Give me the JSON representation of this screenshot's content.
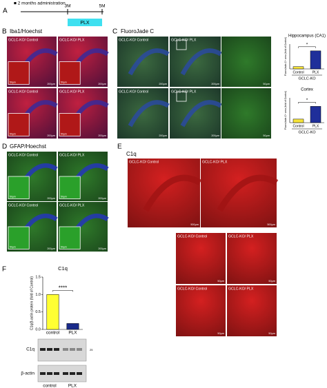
{
  "panel_A": {
    "letter": "A",
    "legend": "■ 2 months administration",
    "start": "3M",
    "end": "5M",
    "treatment": "PLX"
  },
  "panel_B": {
    "letter": "B",
    "title": "Iba1/Hoechst",
    "tiles": [
      {
        "label": "GCLC-KO/ Control",
        "inset_scale": "50μm",
        "scale": "200μm"
      },
      {
        "label": "GCLC-KO/ PLX",
        "inset_scale": "50μm",
        "scale": "200μm"
      },
      {
        "label": "GCLC-KO/ Control",
        "inset_scale": "50μm",
        "scale": "200μm"
      },
      {
        "label": "GCLC-KO/ PLX",
        "inset_scale": "50μm",
        "scale": "200μm"
      }
    ]
  },
  "panel_C": {
    "letter": "C",
    "title": "FluoroJade C",
    "tiles": [
      {
        "label": "GCLC-KO/ Control",
        "scale": "200μm"
      },
      {
        "label": "GCLC-KO/ PLX",
        "scale": "200μm"
      },
      {
        "scale": "50μm"
      },
      {
        "label": "GCLC-KO/ Control",
        "scale": "200μm"
      },
      {
        "label": "GCLC-KO/ PLX",
        "scale": "200μm"
      },
      {
        "scale": "50μm"
      }
    ]
  },
  "panel_D": {
    "letter": "D",
    "title": "GFAP/Hoechst",
    "tiles": [
      {
        "label": "GCLC-KO/ Control",
        "inset_scale": "50μm",
        "scale": "200μm"
      },
      {
        "label": "GCLC-KO/ PLX",
        "inset_scale": "50μm",
        "scale": "200μm"
      },
      {
        "label": "GCLC-KO/ Control",
        "inset_scale": "50μm",
        "scale": "200μm"
      },
      {
        "label": "GCLC-KO/ PLX",
        "inset_scale": "50μm",
        "scale": "200μm"
      }
    ]
  },
  "panel_E": {
    "letter": "E",
    "title": "C1q",
    "tiles": [
      {
        "label": "GCLC-KO/ Control",
        "scale": "500μm"
      },
      {
        "label": "GCLC-KO/ PLX",
        "scale": "500μm"
      },
      {
        "label": "GCLC-KO/ Control",
        "scale": "50μm"
      },
      {
        "label": "GCLC-KO/ PLX",
        "scale": "50μm"
      },
      {
        "label": "GCLC-KO/ Control",
        "scale": "50μm"
      },
      {
        "label": "GCLC-KO/ PLX",
        "scale": "50μm"
      }
    ]
  },
  "panel_F": {
    "letter": "F",
    "blot_bands": [
      "C1q",
      "β-actin"
    ],
    "marker": "25",
    "lanes": [
      "control",
      "PLX"
    ]
  },
  "chart_data": [
    {
      "type": "bar",
      "title": "Hippocampus (CA1)",
      "y_label": "FluoroJade-C+ area (fold of Control)",
      "x_label": "GCLC-KO",
      "categories": [
        "Control",
        "PLX"
      ],
      "values": [
        1,
        8
      ],
      "colors": [
        "#f5e33a",
        "#1f2f9a"
      ],
      "ylim": [
        0,
        11
      ],
      "annotation": "*"
    },
    {
      "type": "bar",
      "title": "Cortex",
      "y_label": "FluoroJade-C+ area (fold of Control)",
      "x_label": "GCLC-KO",
      "categories": [
        "Control",
        "PLX"
      ],
      "values": [
        1,
        4.6
      ],
      "colors": [
        "#f5e33a",
        "#1f2f9a"
      ],
      "ylim": [
        0,
        7
      ],
      "annotation": "*"
    },
    {
      "type": "bar",
      "title": "C1q",
      "y_label": "C1q/β-actin protein (fold of Control)",
      "categories": [
        "control",
        "PLX"
      ],
      "values": [
        1.0,
        0.17
      ],
      "colors": [
        "#ffff33",
        "#1a2a8a"
      ],
      "ylim": [
        0,
        1.5
      ],
      "yticks": [
        {
          "value": 0,
          "label": "0.0"
        },
        {
          "value": 0.5,
          "label": "0.5"
        },
        {
          "value": 1,
          "label": "1.0"
        },
        {
          "value": 1.5,
          "label": "1.5"
        }
      ],
      "annotation": "****"
    }
  ]
}
